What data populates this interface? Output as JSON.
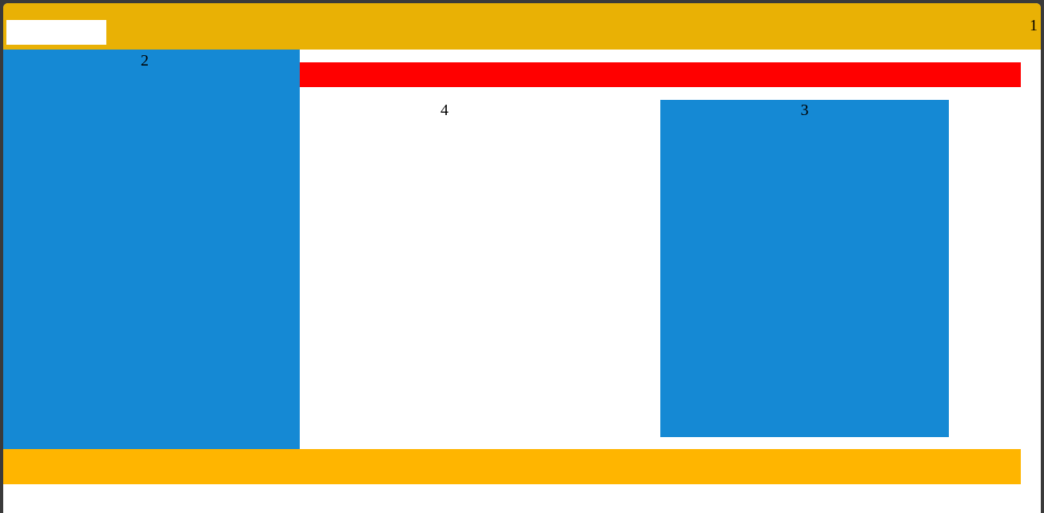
{
  "header": {
    "label": "1",
    "color": "#e9b105"
  },
  "sidebar": {
    "label": "2",
    "color": "#1589d4"
  },
  "alert_bar": {
    "color": "#ff0000"
  },
  "main": {
    "label": "4"
  },
  "panel": {
    "label": "3",
    "color": "#1589d4"
  },
  "footer": {
    "color": "#ffb500"
  }
}
